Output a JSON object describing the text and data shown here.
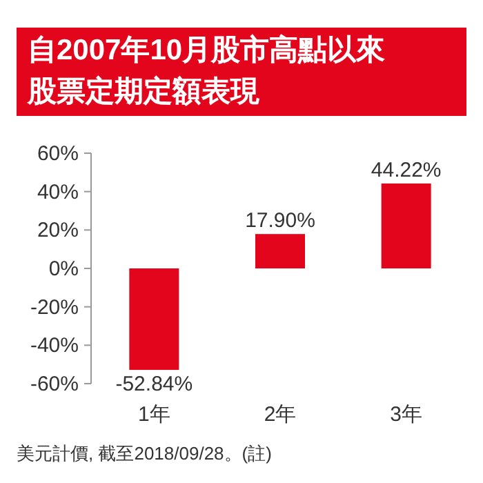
{
  "chart_data": {
    "type": "bar",
    "title": "自2007年10月股市高點以來股票定期定額表現",
    "categories": [
      "1年",
      "2年",
      "3年"
    ],
    "values": [
      -52.84,
      17.9,
      44.22
    ],
    "value_labels": [
      "-52.84%",
      "17.90%",
      "44.22%"
    ],
    "color": "#e3051b",
    "ylim": [
      -60,
      60
    ],
    "yticks": [
      {
        "value": 60,
        "label": "60%"
      },
      {
        "value": 40,
        "label": "40%"
      },
      {
        "value": 20,
        "label": "20%"
      },
      {
        "value": 0,
        "label": "0%"
      },
      {
        "value": -20,
        "label": "-20%"
      },
      {
        "value": -40,
        "label": "-40%"
      },
      {
        "value": -60,
        "label": "-60%"
      }
    ],
    "annotations": [
      "美元計價, 截至2018/09/28。(註)"
    ]
  }
}
